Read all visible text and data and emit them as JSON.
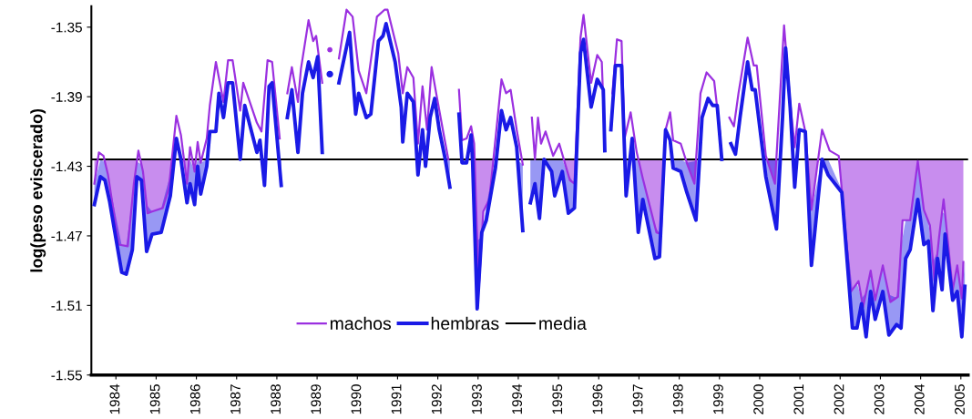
{
  "chart_data": {
    "type": "line",
    "ylabel": "log(peso eviscerado)",
    "xlim": [
      1983.39,
      2005.18
    ],
    "xticks": [
      {
        "value": 1984,
        "label": "1984"
      },
      {
        "value": 1985,
        "label": "1985"
      },
      {
        "value": 1986,
        "label": "1986"
      },
      {
        "value": 1987,
        "label": "1987"
      },
      {
        "value": 1988,
        "label": "1988"
      },
      {
        "value": 1989,
        "label": "1989"
      },
      {
        "value": 1990,
        "label": "1990"
      },
      {
        "value": 1991,
        "label": "1991"
      },
      {
        "value": 1992,
        "label": "1992"
      },
      {
        "value": 1993,
        "label": "1993"
      },
      {
        "value": 1994,
        "label": "1994"
      },
      {
        "value": 1995,
        "label": "1995"
      },
      {
        "value": 1996,
        "label": "1996"
      },
      {
        "value": 1997,
        "label": "1997"
      },
      {
        "value": 1998,
        "label": "1998"
      },
      {
        "value": 1999,
        "label": "1999"
      },
      {
        "value": 2000,
        "label": "2000"
      },
      {
        "value": 2001,
        "label": "2001"
      },
      {
        "value": 2002,
        "label": "2002"
      },
      {
        "value": 2003,
        "label": "2003"
      },
      {
        "value": 2004,
        "label": "2004"
      },
      {
        "value": 2005,
        "label": "2005"
      }
    ],
    "ylim": [
      -1.55,
      -1.338
    ],
    "yticks": [
      -1.55,
      -1.51,
      -1.47,
      -1.43,
      -1.39,
      -1.35
    ],
    "grid": false,
    "legend": "bottom",
    "marker": "none",
    "line_style": "solid",
    "ref_lines": [
      {
        "axis": "y",
        "value": -1.426,
        "label": "media",
        "color": "#000000",
        "line_style": "solid"
      }
    ],
    "series": [
      {
        "name": "machos",
        "color": "#9b30e0",
        "x": [
          1983.464,
          1983.577,
          1983.691,
          1983.804,
          1984.068,
          1984.295,
          1984.446,
          1984.559,
          1984.672,
          1984.786,
          1984.899,
          1985.163,
          1985.314,
          1985.503,
          1985.616,
          1985.767,
          1985.843,
          1985.956,
          1986.032,
          1986.107,
          1986.258,
          1986.334,
          1986.485,
          1986.674,
          1986.787,
          1986.9,
          1987.089,
          1987.165,
          1987.504,
          1987.618,
          1987.769,
          1987.882,
          1988.071,
          1988.17,
          1988.26,
          1988.373,
          1988.524,
          1988.599,
          1988.788,
          1988.902,
          1988.977,
          1989.128,
          1989.22,
          1989.317,
          1989.43,
          1989.543,
          1989.732,
          1989.883,
          1990.034,
          1990.223,
          1990.487,
          1990.676,
          1990.751,
          1991.016,
          1991.129,
          1991.242,
          1991.393,
          1991.507,
          1991.62,
          1991.733,
          1991.846,
          1991.96,
          1992.149,
          1992.262,
          1992.38,
          1992.526,
          1992.602,
          1992.715,
          1992.828,
          1992.904,
          1993.017,
          1993.13,
          1993.281,
          1993.583,
          1993.697,
          1993.81,
          1993.961,
          1994.112,
          1994.2,
          1994.338,
          1994.414,
          1994.49,
          1994.565,
          1994.678,
          1994.867,
          1995.018,
          1995.283,
          1995.396,
          1995.547,
          1995.622,
          1995.811,
          1995.962,
          1996.076,
          1996.151,
          1996.22,
          1996.34,
          1996.453,
          1996.567,
          1996.642,
          1996.793,
          1996.944,
          1997.095,
          1997.435,
          1997.548,
          1997.661,
          1997.774,
          1997.849,
          1998.038,
          1998.189,
          1998.378,
          1998.529,
          1998.68,
          1998.869,
          1999.02,
          1999.15,
          1999.246,
          1999.36,
          1999.473,
          1999.7,
          1999.851,
          1999.926,
          2000.153,
          2000.379,
          2000.606,
          2000.757,
          2000.87,
          2000.983,
          2001.134,
          2001.286,
          2001.55,
          2001.739,
          2001.965,
          2002.267,
          2002.456,
          2002.57,
          2002.758,
          2002.871,
          2003.06,
          2003.249,
          2003.438,
          2003.551,
          2003.74,
          2003.929,
          2004.08,
          2004.231,
          2004.345,
          2004.457,
          2004.571,
          2004.797,
          2004.91,
          2005.024,
          2005.062
        ],
        "values": [
          -1.44,
          -1.422,
          -1.424,
          -1.435,
          -1.475,
          -1.476,
          -1.44,
          -1.421,
          -1.433,
          -1.457,
          -1.456,
          -1.454,
          -1.443,
          -1.401,
          -1.412,
          -1.44,
          -1.419,
          -1.433,
          -1.416,
          -1.428,
          -1.414,
          -1.395,
          -1.37,
          -1.393,
          -1.369,
          -1.369,
          -1.398,
          -1.382,
          -1.405,
          -1.41,
          -1.369,
          -1.37,
          -1.414,
          null,
          -1.388,
          -1.373,
          -1.393,
          -1.374,
          -1.346,
          -1.358,
          -1.355,
          -1.382,
          null,
          -1.363,
          null,
          -1.368,
          -1.34,
          -1.344,
          -1.375,
          -1.388,
          -1.344,
          -1.34,
          -1.34,
          -1.365,
          -1.388,
          -1.373,
          -1.379,
          -1.417,
          -1.384,
          -1.409,
          -1.373,
          -1.388,
          -1.412,
          -1.426,
          null,
          -1.386,
          -1.415,
          -1.414,
          -1.407,
          -1.417,
          -1.501,
          -1.456,
          -1.449,
          -1.38,
          -1.388,
          -1.386,
          -1.409,
          -1.429,
          null,
          -1.402,
          -1.426,
          -1.402,
          -1.417,
          -1.41,
          -1.424,
          -1.417,
          -1.438,
          -1.44,
          -1.356,
          -1.343,
          -1.382,
          -1.366,
          -1.37,
          -1.417,
          null,
          -1.388,
          -1.357,
          -1.358,
          -1.414,
          -1.399,
          -1.422,
          -1.437,
          -1.468,
          -1.469,
          -1.409,
          -1.399,
          -1.415,
          -1.417,
          -1.428,
          -1.44,
          -1.388,
          -1.376,
          -1.381,
          -1.412,
          null,
          -1.402,
          -1.407,
          -1.388,
          -1.356,
          -1.372,
          -1.372,
          -1.424,
          -1.44,
          -1.349,
          -1.393,
          -1.419,
          -1.394,
          -1.41,
          -1.455,
          -1.409,
          -1.421,
          -1.424,
          -1.502,
          -1.496,
          -1.511,
          -1.49,
          -1.507,
          -1.487,
          -1.508,
          -1.505,
          -1.461,
          -1.461,
          -1.427,
          -1.455,
          -1.464,
          -1.496,
          -1.471,
          -1.449,
          -1.501,
          -1.487,
          -1.506,
          -1.485
        ]
      },
      {
        "name": "hembras",
        "color": "#1a1ae6",
        "x": [
          1983.464,
          1983.615,
          1983.728,
          1983.842,
          1984.144,
          1984.257,
          1984.408,
          1984.521,
          1984.634,
          1984.763,
          1984.899,
          1985.126,
          1985.352,
          1985.503,
          1985.616,
          1985.767,
          1985.843,
          1985.956,
          1986.032,
          1986.107,
          1986.258,
          1986.334,
          1986.485,
          1986.56,
          1986.674,
          1986.787,
          1986.9,
          1987.089,
          1987.202,
          1987.504,
          1987.58,
          1987.693,
          1987.807,
          1987.882,
          1988.109,
          1988.18,
          1988.26,
          1988.373,
          1988.524,
          1988.637,
          1988.788,
          1988.902,
          1989.015,
          1989.128,
          1989.22,
          1989.317,
          1989.43,
          1989.543,
          1989.808,
          1989.959,
          1990.034,
          1990.223,
          1990.336,
          1990.525,
          1990.638,
          1990.714,
          1990.94,
          1991.091,
          1991.129,
          1991.242,
          1991.393,
          1991.507,
          1991.62,
          1991.695,
          1991.809,
          1991.922,
          1992.035,
          1992.186,
          1992.3,
          1992.38,
          1992.526,
          1992.602,
          1992.715,
          1992.828,
          1992.866,
          1992.979,
          1993.093,
          1993.206,
          1993.432,
          1993.583,
          1993.697,
          1993.81,
          1993.961,
          1994.112,
          1994.2,
          1994.301,
          1994.414,
          1994.527,
          1994.641,
          1994.829,
          1994.905,
          1995.094,
          1995.245,
          1995.396,
          1995.547,
          1995.622,
          1995.811,
          1995.962,
          1996.113,
          1996.151,
          1996.22,
          1996.302,
          1996.415,
          1996.567,
          1996.68,
          1996.831,
          1996.982,
          1997.095,
          1997.397,
          1997.51,
          1997.661,
          1997.774,
          1997.849,
          1998.038,
          1998.189,
          1998.416,
          1998.567,
          1998.718,
          1998.831,
          1998.944,
          1999.058,
          1999.15,
          1999.284,
          1999.398,
          1999.511,
          1999.7,
          1999.813,
          1999.888,
          2000.153,
          2000.417,
          2000.568,
          2000.644,
          2000.757,
          2000.87,
          2000.983,
          2001.134,
          2001.286,
          2001.55,
          2001.701,
          2002.041,
          2002.305,
          2002.418,
          2002.532,
          2002.645,
          2002.758,
          2002.871,
          2003.06,
          2003.211,
          2003.4,
          2003.513,
          2003.627,
          2003.74,
          2003.929,
          2004.08,
          2004.193,
          2004.306,
          2004.42,
          2004.533,
          2004.608,
          2004.797,
          2004.91,
          2005.024,
          2005.099
        ],
        "values": [
          -1.452,
          -1.436,
          -1.438,
          -1.45,
          -1.491,
          -1.492,
          -1.478,
          -1.436,
          -1.438,
          -1.479,
          -1.469,
          -1.468,
          -1.447,
          -1.414,
          -1.426,
          -1.451,
          -1.44,
          -1.452,
          -1.43,
          -1.446,
          -1.43,
          -1.41,
          -1.41,
          -1.388,
          -1.402,
          -1.382,
          -1.382,
          -1.426,
          -1.395,
          -1.422,
          -1.415,
          -1.441,
          -1.384,
          -1.382,
          -1.441,
          null,
          -1.402,
          -1.386,
          -1.422,
          -1.388,
          -1.37,
          -1.379,
          -1.367,
          -1.422,
          null,
          -1.377,
          null,
          -1.382,
          -1.353,
          -1.4,
          -1.388,
          -1.402,
          -1.4,
          -1.358,
          -1.355,
          -1.348,
          -1.37,
          -1.396,
          -1.416,
          -1.388,
          -1.393,
          -1.435,
          -1.409,
          -1.43,
          -1.402,
          -1.391,
          -1.409,
          -1.426,
          -1.442,
          null,
          -1.4,
          -1.428,
          -1.428,
          -1.412,
          -1.428,
          -1.512,
          -1.468,
          -1.461,
          -1.431,
          -1.398,
          -1.409,
          -1.402,
          -1.419,
          -1.467,
          null,
          -1.451,
          -1.44,
          -1.46,
          -1.426,
          -1.433,
          -1.447,
          -1.433,
          -1.457,
          -1.454,
          -1.365,
          -1.357,
          -1.396,
          -1.38,
          -1.386,
          -1.421,
          null,
          -1.409,
          -1.372,
          -1.372,
          -1.447,
          -1.414,
          -1.468,
          -1.449,
          -1.483,
          -1.482,
          -1.409,
          -1.415,
          -1.431,
          -1.433,
          -1.445,
          -1.461,
          -1.402,
          -1.391,
          -1.395,
          -1.395,
          -1.426,
          null,
          -1.417,
          -1.423,
          -1.402,
          -1.37,
          -1.386,
          -1.386,
          -1.436,
          -1.466,
          -1.402,
          -1.362,
          -1.396,
          -1.442,
          -1.409,
          -1.41,
          -1.487,
          -1.426,
          -1.435,
          -1.445,
          -1.523,
          -1.523,
          -1.509,
          -1.528,
          -1.502,
          -1.518,
          -1.502,
          -1.527,
          -1.521,
          -1.523,
          -1.483,
          -1.478,
          -1.449,
          -1.475,
          -1.473,
          -1.513,
          -1.483,
          -1.501,
          -1.469,
          -1.507,
          -1.502,
          -1.528,
          -1.499
        ]
      }
    ]
  }
}
